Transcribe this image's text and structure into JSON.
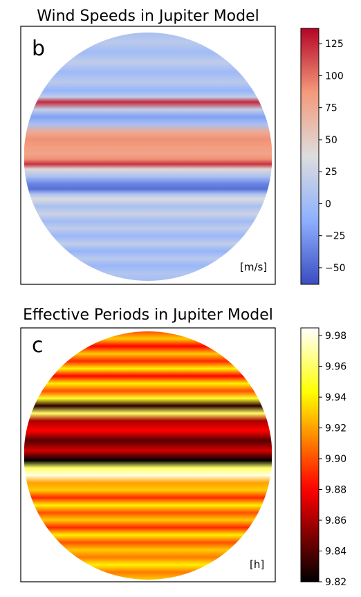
{
  "chart_data": [
    {
      "type": "heatmap",
      "title": "Wind Speeds in Jupiter Model",
      "panel_label": "b",
      "unit_label": "[m/s]",
      "colormap": "coolwarm",
      "colorbar": {
        "range": [
          -63,
          137
        ],
        "ticks": [
          -50,
          -25,
          0,
          25,
          50,
          75,
          100,
          125
        ],
        "tick_labels": [
          "−50",
          "−25",
          "0",
          "25",
          "50",
          "75",
          "100",
          "125"
        ]
      },
      "profile": {
        "latitude_fraction": [
          0.0,
          0.04,
          0.08,
          0.12,
          0.16,
          0.2,
          0.235,
          0.26,
          0.28,
          0.31,
          0.34,
          0.37,
          0.4,
          0.43,
          0.46,
          0.49,
          0.51,
          0.53,
          0.55,
          0.58,
          0.61,
          0.63,
          0.65,
          0.67,
          0.7,
          0.73,
          0.76,
          0.79,
          0.82,
          0.85,
          0.88,
          0.91,
          0.94,
          0.97,
          1.0
        ],
        "values": [
          5,
          15,
          0,
          18,
          -2,
          15,
          -8,
          20,
          125,
          20,
          -20,
          5,
          75,
          90,
          85,
          80,
          90,
          122,
          40,
          5,
          -35,
          -45,
          5,
          35,
          5,
          25,
          0,
          18,
          -5,
          20,
          -8,
          15,
          -5,
          10,
          2
        ]
      }
    },
    {
      "type": "heatmap",
      "title": "Effective Periods in Jupiter Model",
      "panel_label": "c",
      "unit_label": "[h]",
      "colormap": "hot",
      "colorbar": {
        "range": [
          9.82,
          9.985
        ],
        "ticks": [
          9.82,
          9.84,
          9.86,
          9.88,
          9.9,
          9.92,
          9.94,
          9.96,
          9.98
        ],
        "tick_labels": [
          "9.82",
          "9.84",
          "9.86",
          "9.88",
          "9.90",
          "9.92",
          "9.94",
          "9.96",
          "9.98"
        ]
      },
      "profile": {
        "latitude_fraction": [
          0.0,
          0.03,
          0.06,
          0.09,
          0.12,
          0.15,
          0.18,
          0.21,
          0.24,
          0.27,
          0.3,
          0.33,
          0.36,
          0.4,
          0.44,
          0.48,
          0.52,
          0.55,
          0.58,
          0.61,
          0.64,
          0.67,
          0.7,
          0.73,
          0.76,
          0.79,
          0.82,
          0.85,
          0.88,
          0.91,
          0.94,
          0.97,
          1.0
        ],
        "values": [
          9.9,
          9.93,
          9.88,
          9.93,
          9.89,
          9.94,
          9.88,
          9.94,
          9.9,
          9.95,
          9.83,
          9.96,
          9.86,
          9.88,
          9.84,
          9.87,
          9.82,
          9.96,
          9.98,
          9.92,
          9.93,
          9.89,
          9.94,
          9.9,
          9.93,
          9.89,
          9.94,
          9.9,
          9.93,
          9.91,
          9.94,
          9.91,
          9.93
        ]
      }
    }
  ]
}
